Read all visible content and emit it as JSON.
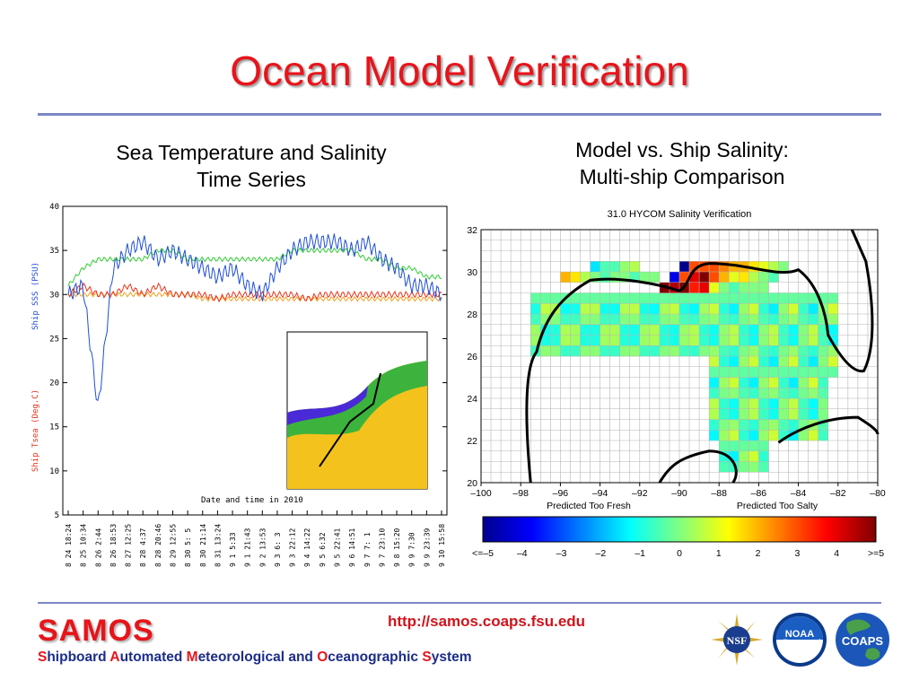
{
  "slide": {
    "title": "Ocean Model Verification",
    "left_subtitle": [
      "Sea Temperature and Salinity",
      "Time Series"
    ],
    "right_subtitle": [
      "Model vs. Ship Salinity:",
      "Multi-ship Comparison"
    ],
    "url": "http://samos.coaps.fsu.edu"
  },
  "footer": {
    "samos": "SAMOS",
    "tagline_words": [
      {
        "cap": "S",
        "rest": "hipboard "
      },
      {
        "cap": "A",
        "rest": "utomated "
      },
      {
        "cap": "M",
        "rest": "eteorological and "
      },
      {
        "cap": "O",
        "rest": "ceanographic "
      },
      {
        "cap": "S",
        "rest": "ystem"
      }
    ],
    "logos": {
      "nsf": {
        "label": "NSF",
        "icon": "nsf-logo-icon"
      },
      "noaa": {
        "label": "NOAA",
        "icon": "noaa-logo-icon"
      },
      "coaps": {
        "label": "COAPS",
        "icon": "coaps-logo-icon"
      }
    }
  },
  "colors": {
    "title_red": "#e8141b",
    "rule_blue": "#7b86c4",
    "sss_blue": "#1f4fd6",
    "tsea_red": "#e8341b",
    "green": "#33cc33",
    "orange": "#f0a020"
  },
  "chart_data": [
    {
      "type": "line",
      "xlabel": "Date and time in 2010",
      "ylabel_left": "Ship SSS (PSU)",
      "ylabel_left2": "Ship Tsea (Deg.C)",
      "ylim": [
        5,
        40
      ],
      "yticks": [
        5,
        10,
        15,
        20,
        25,
        30,
        35,
        40
      ],
      "xticks": [
        "8 24 18:24",
        "8 25 10:34",
        "8 26 2:44",
        "8 26 18:53",
        "8 27 12:25",
        "8 28 4:37",
        "8 28 20:46",
        "8 29 12:55",
        "8 30 5: 5",
        "8 30 21:14",
        "8 31 13:24",
        "9 1 5:33",
        "9 1 21:43",
        "9 2 13:53",
        "9 3 6: 3",
        "9 3 22:12",
        "9 4 14:22",
        "9 5 6:32",
        "9 5 22:41",
        "9 6 14:51",
        "9 7 7: 1",
        "9 7 23:10",
        "9 8 15:20",
        "9 9 7:30",
        "9 9 23:39",
        "9 10 15:58"
      ],
      "series": [
        {
          "name": "Ship SSS (PSU)",
          "color": "#1f4fd6",
          "values": [
            30,
            31,
            17,
            33,
            35,
            36,
            34,
            35,
            34,
            33,
            32,
            33,
            31,
            30,
            33,
            35,
            36,
            36,
            36,
            35,
            36,
            34,
            33,
            31,
            31,
            30
          ]
        },
        {
          "name": "Ship Tsea (Deg.C)",
          "color": "#e8341b",
          "values": [
            30,
            31,
            30,
            30,
            31,
            30,
            31,
            30,
            30,
            30,
            29.5,
            30,
            30,
            30,
            30,
            30,
            29.5,
            30,
            30,
            30,
            30,
            30,
            30,
            30,
            30,
            30
          ]
        },
        {
          "series_label": "green",
          "color": "#33cc33",
          "values": [
            31,
            33,
            34,
            34,
            34,
            34,
            35,
            35,
            34,
            34,
            34,
            34,
            34,
            34,
            34,
            35,
            35,
            35,
            35,
            35,
            34,
            34,
            33,
            33,
            32,
            32
          ]
        },
        {
          "series_label": "orange",
          "color": "#f0a020",
          "values": [
            30,
            30,
            30,
            30,
            30,
            30,
            30,
            30,
            30,
            29.5,
            29.5,
            29.5,
            29.5,
            29.5,
            29.5,
            29.5,
            29.5,
            29.5,
            29.5,
            29.5,
            29.5,
            29.5,
            29.5,
            29.5,
            29.5,
            29.5
          ]
        }
      ]
    },
    {
      "type": "heatmap",
      "title": "31.0 HYCOM Salinity Verification",
      "xticks": [
        "–100",
        "–98",
        "–96",
        "–94",
        "–92",
        "–90",
        "–88",
        "–86",
        "–84",
        "–82",
        "–80"
      ],
      "yticks": [
        "20",
        "22",
        "24",
        "26",
        "28",
        "30",
        "32"
      ],
      "xlim": [
        -100,
        -80
      ],
      "ylim": [
        20,
        32
      ],
      "cell_deg": 0.5,
      "annot_left": "Predicted Too Fresh",
      "annot_right": "Predicted Too Salty",
      "colorbar": {
        "range": [
          -5,
          5
        ],
        "ticks": [
          "<=–5",
          "–4",
          "–3",
          "–2",
          "–1",
          "0",
          "1",
          "2",
          "3",
          "4",
          ">=5"
        ],
        "colors": [
          "#00008f",
          "#0000ff",
          "#0080ff",
          "#00ffff",
          "#80ff80",
          "#ffff00",
          "#ff8000",
          "#ff0000",
          "#800000"
        ]
      },
      "cells": [
        [
          -95.5,
          29.5,
          1.5
        ],
        [
          -95,
          29.5,
          1.5
        ],
        [
          -94.5,
          30,
          -1.5
        ],
        [
          -94,
          30,
          -0.5
        ],
        [
          -93.5,
          30,
          -0.5
        ],
        [
          -93,
          30,
          0.2
        ],
        [
          -92.5,
          30,
          0.5
        ],
        [
          -90,
          30,
          -5
        ],
        [
          -89.5,
          30,
          3
        ],
        [
          -89,
          30,
          3
        ],
        [
          -88.5,
          30,
          3
        ],
        [
          -88,
          30,
          2.5
        ],
        [
          -87.5,
          30,
          2
        ],
        [
          -87,
          30,
          2
        ],
        [
          -86.5,
          30,
          1.5
        ],
        [
          -86,
          30,
          1
        ],
        [
          -85.5,
          30,
          0.5
        ],
        [
          -85,
          30,
          0
        ],
        [
          -96,
          29.5,
          2
        ],
        [
          -95,
          29.5,
          0.5
        ],
        [
          -94.5,
          29.5,
          0
        ],
        [
          -94,
          29.5,
          -0.5
        ],
        [
          -93.5,
          29.5,
          0
        ],
        [
          -93,
          29.5,
          0
        ],
        [
          -92.5,
          29.5,
          -0.5
        ],
        [
          -92,
          29.5,
          0
        ],
        [
          -91.5,
          29.5,
          0
        ],
        [
          -90.5,
          29.5,
          -4
        ],
        [
          -90,
          29.5,
          3
        ],
        [
          -89.5,
          29.5,
          4
        ],
        [
          -89,
          29.5,
          5
        ],
        [
          -88.5,
          29.5,
          3
        ],
        [
          -88,
          29.5,
          2
        ],
        [
          -87.5,
          29.5,
          1
        ],
        [
          -87,
          29.5,
          1.5
        ],
        [
          -86.5,
          29.5,
          0.5
        ],
        [
          -86,
          29.5,
          0
        ],
        [
          -85.5,
          29.5,
          -0.5
        ],
        [
          -91,
          29,
          5
        ],
        [
          -90.5,
          29,
          4.5
        ],
        [
          -90,
          29,
          5
        ],
        [
          -89.5,
          29,
          3.5
        ],
        [
          -89,
          29,
          4
        ],
        [
          -88.5,
          29,
          1
        ],
        [
          -88,
          29,
          0
        ],
        [
          -87.5,
          29,
          -0.5
        ],
        [
          -87,
          29,
          0
        ],
        [
          -86.5,
          29,
          0
        ],
        [
          -86,
          29,
          0
        ]
      ]
    }
  ]
}
